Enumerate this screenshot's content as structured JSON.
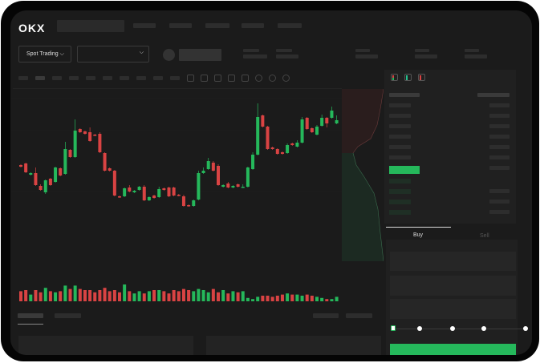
{
  "header": {
    "logo": "OKX"
  },
  "toolbar": {
    "market_type": "Spot Trading",
    "pair_selector": ""
  },
  "order_form": {
    "buy_tab": "Buy",
    "sell_tab": "Sell",
    "slider_level": 0
  },
  "colors": {
    "up": "#25b85b",
    "down": "#d94343",
    "background": "#1b1b1b",
    "accent_button": "#25b85b"
  },
  "chart": {
    "candles": [
      [
        65,
        63,
        66,
        62
      ],
      [
        67,
        56,
        68,
        55
      ],
      [
        53,
        55,
        56,
        52
      ],
      [
        55,
        40,
        62,
        39
      ],
      [
        39,
        34,
        41,
        33
      ],
      [
        31,
        46,
        47,
        29
      ],
      [
        48,
        40,
        49,
        39
      ],
      [
        44,
        62,
        63,
        43
      ],
      [
        61,
        52,
        62,
        51
      ],
      [
        54,
        85,
        94,
        53
      ],
      [
        84,
        75,
        85,
        74
      ],
      [
        75,
        108,
        122,
        74
      ],
      [
        110,
        106,
        111,
        105
      ],
      [
        107,
        104,
        108,
        103
      ],
      [
        106,
        95,
        112,
        94
      ],
      [
        103,
        102,
        104,
        101
      ],
      [
        104,
        81,
        106,
        80
      ],
      [
        80,
        58,
        81,
        57
      ],
      [
        61,
        58,
        62,
        57
      ],
      [
        58,
        27,
        59,
        26
      ],
      [
        26,
        25,
        27,
        24
      ],
      [
        26,
        36,
        37,
        25
      ],
      [
        37,
        32,
        40,
        31
      ],
      [
        31,
        33,
        34,
        30
      ],
      [
        34,
        38,
        39,
        33
      ],
      [
        38,
        21,
        40,
        20
      ],
      [
        21,
        25,
        26,
        20
      ],
      [
        27,
        24,
        28,
        23
      ],
      [
        25,
        35,
        38,
        24
      ],
      [
        36,
        34,
        37,
        33
      ],
      [
        37,
        26,
        38,
        25
      ],
      [
        37,
        27,
        38,
        26
      ],
      [
        28,
        27,
        29,
        26
      ],
      [
        26,
        14,
        28,
        13
      ],
      [
        15,
        14,
        16,
        13
      ],
      [
        14,
        21,
        22,
        13
      ],
      [
        22,
        55,
        58,
        21
      ],
      [
        55,
        58,
        62,
        54
      ],
      [
        60,
        70,
        74,
        59
      ],
      [
        68,
        58,
        70,
        57
      ],
      [
        64,
        40,
        66,
        39
      ],
      [
        38,
        40,
        41,
        37
      ],
      [
        42,
        37,
        44,
        36
      ],
      [
        37,
        39,
        40,
        36
      ],
      [
        41,
        38,
        42,
        37
      ],
      [
        38,
        38,
        41,
        37
      ],
      [
        38,
        62,
        63,
        37
      ],
      [
        60,
        78,
        81,
        59
      ],
      [
        78,
        125,
        142,
        77
      ],
      [
        127,
        113,
        128,
        112
      ],
      [
        113,
        85,
        114,
        84
      ],
      [
        87,
        85,
        88,
        84
      ],
      [
        85,
        79,
        86,
        78
      ],
      [
        81,
        79,
        82,
        78
      ],
      [
        80,
        90,
        92,
        79
      ],
      [
        92,
        90,
        93,
        89
      ],
      [
        88,
        93,
        96,
        87
      ],
      [
        93,
        122,
        125,
        92
      ],
      [
        124,
        110,
        125,
        109
      ],
      [
        111,
        106,
        112,
        105
      ],
      [
        103,
        113,
        115,
        102
      ],
      [
        114,
        124,
        128,
        113
      ],
      [
        124,
        117,
        125,
        112
      ],
      [
        124,
        133,
        138,
        123
      ],
      [
        117,
        121,
        127,
        116
      ]
    ],
    "volume": [
      9,
      10,
      6,
      10,
      8,
      12,
      9,
      8,
      9,
      14,
      11,
      14,
      11,
      10,
      10,
      8,
      10,
      12,
      9,
      10,
      8,
      15,
      9,
      7,
      9,
      7,
      9,
      10,
      10,
      9,
      7,
      10,
      9,
      11,
      10,
      9,
      11,
      10,
      8,
      11,
      8,
      10,
      7,
      9,
      8,
      9,
      3,
      2,
      4,
      5,
      5,
      4,
      5,
      6,
      7,
      6,
      6,
      5,
      6,
      5,
      4,
      3,
      2,
      2,
      4
    ]
  }
}
